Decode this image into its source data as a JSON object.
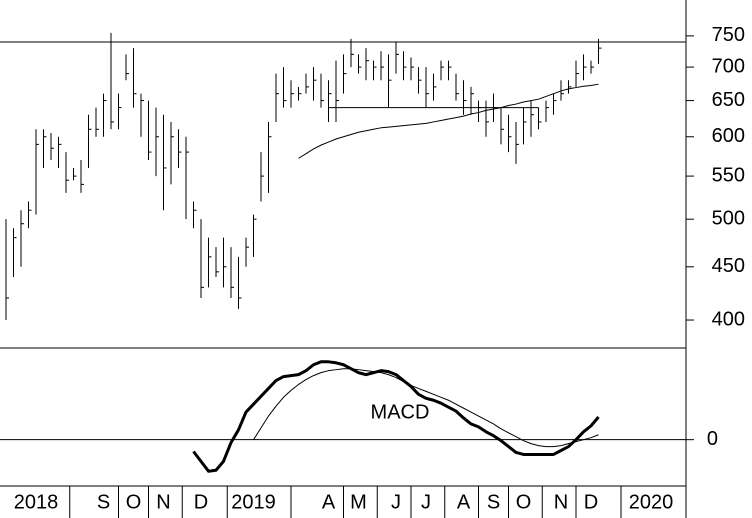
{
  "chart_data": [
    {
      "type": "ohlc",
      "scale": "log",
      "color": "#000000",
      "ylim": [
        376,
        812
      ],
      "yticks": [
        400,
        450,
        500,
        550,
        600,
        650,
        700,
        750
      ],
      "high": [
        500,
        490,
        510,
        520,
        610,
        610,
        605,
        600,
        580,
        560,
        570,
        630,
        640,
        660,
        755,
        660,
        720,
        730,
        660,
        650,
        640,
        630,
        620,
        610,
        600,
        520,
        500,
        480,
        470,
        480,
        470,
        460,
        480,
        505,
        580,
        620,
        690,
        700,
        680,
        670,
        690,
        700,
        690,
        680,
        710,
        720,
        745,
        720,
        730,
        710,
        725,
        720,
        740,
        725,
        715,
        700,
        700,
        690,
        710,
        710,
        690,
        680,
        670,
        650,
        650,
        660,
        640,
        630,
        620,
        640,
        650,
        640,
        650,
        660,
        680,
        680,
        710,
        720,
        710,
        745,
        null,
        null,
        null,
        null,
        null,
        null,
        null,
        null,
        null,
        null,
        null
      ],
      "low": [
        400,
        440,
        450,
        490,
        505,
        560,
        570,
        560,
        530,
        545,
        530,
        560,
        600,
        600,
        610,
        610,
        680,
        640,
        600,
        570,
        550,
        510,
        540,
        560,
        500,
        490,
        420,
        430,
        440,
        430,
        420,
        410,
        450,
        460,
        520,
        530,
        620,
        640,
        640,
        650,
        660,
        650,
        640,
        620,
        620,
        660,
        700,
        690,
        680,
        680,
        680,
        640,
        690,
        680,
        680,
        660,
        640,
        650,
        680,
        680,
        650,
        630,
        630,
        620,
        600,
        620,
        590,
        580,
        565,
        590,
        600,
        610,
        620,
        630,
        650,
        660,
        670,
        680,
        690,
        705,
        null,
        null,
        null,
        null,
        null,
        null,
        null,
        null,
        null,
        null,
        null
      ],
      "close": [
        420,
        480,
        495,
        510,
        590,
        600,
        585,
        590,
        545,
        550,
        540,
        610,
        610,
        650,
        620,
        640,
        690,
        660,
        650,
        580,
        600,
        560,
        600,
        580,
        580,
        510,
        430,
        460,
        445,
        450,
        430,
        420,
        470,
        500,
        550,
        600,
        660,
        650,
        660,
        660,
        670,
        680,
        650,
        660,
        650,
        690,
        720,
        700,
        710,
        700,
        700,
        680,
        720,
        700,
        700,
        680,
        660,
        670,
        700,
        700,
        660,
        650,
        660,
        640,
        620,
        640,
        610,
        600,
        590,
        620,
        630,
        620,
        640,
        650,
        660,
        670,
        690,
        700,
        700,
        730,
        null,
        null,
        null,
        null,
        null,
        null,
        null,
        null,
        null,
        null,
        null
      ],
      "moving_average": [
        null,
        null,
        null,
        null,
        null,
        null,
        null,
        null,
        null,
        null,
        null,
        null,
        null,
        null,
        null,
        null,
        null,
        null,
        null,
        null,
        null,
        null,
        null,
        null,
        null,
        null,
        null,
        null,
        null,
        null,
        null,
        null,
        null,
        null,
        null,
        null,
        null,
        null,
        null,
        572,
        578,
        584,
        589,
        593,
        597,
        600,
        603,
        606,
        608,
        610,
        612,
        613,
        614,
        615,
        616,
        617,
        618,
        620,
        622,
        624,
        626,
        628,
        631,
        633,
        636,
        638,
        640,
        643,
        645,
        648,
        650,
        652,
        656,
        660,
        664,
        667,
        669,
        671,
        672,
        674,
        null,
        null,
        null,
        null,
        null,
        null,
        null,
        null,
        null,
        null,
        null
      ],
      "resistance": 740,
      "support": {
        "value": 640,
        "start": 43,
        "end": 71
      }
    },
    {
      "type": "line",
      "ylim": [
        -47,
        93
      ],
      "yticks": [
        0
      ],
      "zero_line": true,
      "categories": [
        null,
        null,
        null,
        null,
        "2018",
        null,
        null,
        null,
        null,
        null,
        null,
        null,
        null,
        "S",
        null,
        null,
        null,
        "O",
        null,
        null,
        null,
        "N",
        null,
        null,
        null,
        null,
        "D",
        null,
        null,
        null,
        null,
        null,
        null,
        "2019",
        null,
        null,
        null,
        null,
        null,
        null,
        null,
        null,
        null,
        "A",
        null,
        null,
        null,
        "M",
        null,
        null,
        null,
        null,
        "J",
        null,
        null,
        null,
        "J",
        null,
        null,
        null,
        null,
        "A",
        null,
        null,
        null,
        "S",
        null,
        null,
        null,
        "O",
        null,
        null,
        null,
        null,
        "N",
        null,
        null,
        null,
        "D",
        null,
        null,
        null,
        null,
        null,
        null,
        null,
        "2020",
        null,
        null,
        null,
        null
      ],
      "series": [
        {
          "name": "MACD",
          "color": "#000000",
          "width": 3,
          "values": [
            null,
            null,
            null,
            null,
            null,
            null,
            null,
            null,
            null,
            null,
            null,
            null,
            null,
            null,
            null,
            null,
            null,
            null,
            null,
            null,
            null,
            null,
            null,
            null,
            null,
            -12,
            -22,
            -32,
            -31,
            -22,
            -3,
            10,
            28,
            36,
            44,
            52,
            60,
            64,
            65,
            66,
            70,
            76,
            79,
            79,
            78,
            76,
            72,
            68,
            66,
            68,
            70,
            69,
            66,
            60,
            54,
            46,
            42,
            40,
            37,
            33,
            29,
            22,
            16,
            13,
            8,
            4,
            -1,
            -7,
            -13,
            -15,
            -15,
            -15,
            -15,
            -15,
            -11,
            -7,
            0,
            8,
            14,
            23,
            null,
            null,
            null,
            null,
            null,
            null,
            null,
            null,
            null,
            null,
            null
          ]
        },
        {
          "color": "#000000",
          "width": 1,
          "values": [
            null,
            null,
            null,
            null,
            null,
            null,
            null,
            null,
            null,
            null,
            null,
            null,
            null,
            null,
            null,
            null,
            null,
            null,
            null,
            null,
            null,
            null,
            null,
            null,
            null,
            null,
            null,
            null,
            null,
            null,
            null,
            null,
            null,
            0,
            12,
            24,
            34,
            43,
            50,
            56,
            61,
            65,
            68,
            70,
            71,
            72,
            72,
            71,
            70,
            69,
            68,
            66,
            63,
            59,
            55,
            52,
            49,
            46,
            43,
            40,
            36,
            32,
            28,
            24,
            20,
            16,
            11,
            7,
            3,
            -1,
            -4,
            -6,
            -7,
            -7,
            -6,
            -4,
            -2,
            0,
            2,
            5,
            null,
            null,
            null,
            null,
            null,
            null,
            null,
            null,
            null,
            null,
            null
          ]
        }
      ]
    }
  ]
}
